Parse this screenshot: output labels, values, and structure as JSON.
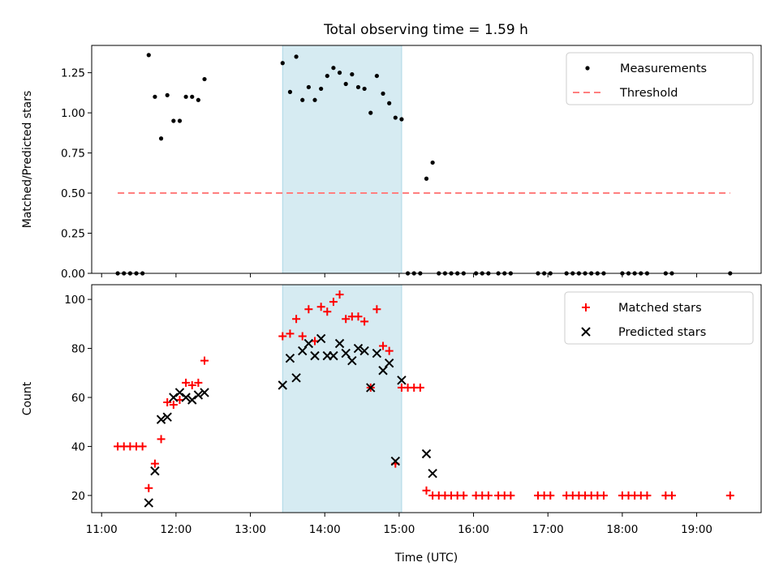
{
  "title": "Total observing time = 1.59 h",
  "colors": {
    "measurement": "#000000",
    "threshold": "#ff7f7f",
    "matched": "#ff0000",
    "predicted": "#000000",
    "shade": "#add8e6"
  },
  "chart_data": [
    {
      "type": "scatter",
      "ylabel": "Matched/Predicted stars",
      "xlabel": "",
      "xlim": [
        "10:52",
        "19:52"
      ],
      "ylim": [
        0,
        1.42
      ],
      "yticks": [
        "0.00",
        "0.25",
        "0.50",
        "0.75",
        "1.00",
        "1.25"
      ],
      "x_tick_values": [
        "11:00",
        "12:00",
        "13:00",
        "14:00",
        "15:00",
        "16:00",
        "17:00",
        "18:00",
        "19:00"
      ],
      "grid": false,
      "legend_position": "upper right",
      "shaded_region": [
        "13:26",
        "15:02"
      ],
      "series": [
        {
          "name": "Measurements",
          "marker": "dot",
          "points": [
            [
              "11:13",
              0
            ],
            [
              "11:18",
              0
            ],
            [
              "11:23",
              0
            ],
            [
              "11:28",
              0
            ],
            [
              "11:33",
              0
            ],
            [
              "11:38",
              1.36
            ],
            [
              "11:43",
              1.1
            ],
            [
              "11:48",
              0.84
            ],
            [
              "11:53",
              1.11
            ],
            [
              "11:58",
              0.95
            ],
            [
              "12:03",
              0.95
            ],
            [
              "12:08",
              1.1
            ],
            [
              "12:13",
              1.1
            ],
            [
              "12:18",
              1.08
            ],
            [
              "12:23",
              1.21
            ],
            [
              "13:26",
              1.31
            ],
            [
              "13:32",
              1.13
            ],
            [
              "13:37",
              1.35
            ],
            [
              "13:42",
              1.08
            ],
            [
              "13:47",
              1.16
            ],
            [
              "13:52",
              1.08
            ],
            [
              "13:57",
              1.15
            ],
            [
              "14:02",
              1.23
            ],
            [
              "14:07",
              1.28
            ],
            [
              "14:12",
              1.25
            ],
            [
              "14:17",
              1.18
            ],
            [
              "14:22",
              1.24
            ],
            [
              "14:27",
              1.16
            ],
            [
              "14:32",
              1.15
            ],
            [
              "14:37",
              1.0
            ],
            [
              "14:42",
              1.23
            ],
            [
              "14:47",
              1.12
            ],
            [
              "14:52",
              1.06
            ],
            [
              "14:57",
              0.97
            ],
            [
              "15:02",
              0.96
            ],
            [
              "15:07",
              0
            ],
            [
              "15:12",
              0
            ],
            [
              "15:17",
              0
            ],
            [
              "15:22",
              0.59
            ],
            [
              "15:27",
              0.69
            ],
            [
              "15:32",
              0
            ],
            [
              "15:37",
              0
            ],
            [
              "15:42",
              0
            ],
            [
              "15:47",
              0
            ],
            [
              "15:52",
              0
            ],
            [
              "16:02",
              0
            ],
            [
              "16:07",
              0
            ],
            [
              "16:12",
              0
            ],
            [
              "16:20",
              0
            ],
            [
              "16:25",
              0
            ],
            [
              "16:30",
              0
            ],
            [
              "16:52",
              0
            ],
            [
              "16:57",
              0
            ],
            [
              "17:02",
              0
            ],
            [
              "17:15",
              0
            ],
            [
              "17:20",
              0
            ],
            [
              "17:25",
              0
            ],
            [
              "17:30",
              0
            ],
            [
              "17:35",
              0
            ],
            [
              "17:40",
              0
            ],
            [
              "17:45",
              0
            ],
            [
              "18:00",
              0
            ],
            [
              "18:05",
              0
            ],
            [
              "18:10",
              0
            ],
            [
              "18:15",
              0
            ],
            [
              "18:20",
              0
            ],
            [
              "18:35",
              0
            ],
            [
              "18:40",
              0
            ],
            [
              "19:27",
              0
            ]
          ]
        },
        {
          "name": "Threshold",
          "line": "dashed",
          "points": [
            [
              "11:13",
              0.5
            ],
            [
              "19:27",
              0.5
            ]
          ]
        }
      ]
    },
    {
      "type": "scatter",
      "ylabel": "Count",
      "xlabel": "Time (UTC)",
      "xlim": [
        "10:52",
        "19:52"
      ],
      "ylim": [
        13,
        106
      ],
      "yticks": [
        "20",
        "40",
        "60",
        "80",
        "100"
      ],
      "xticks": [
        "11:00",
        "12:00",
        "13:00",
        "14:00",
        "15:00",
        "16:00",
        "17:00",
        "18:00",
        "19:00"
      ],
      "grid": false,
      "legend_position": "upper right",
      "shaded_region": [
        "13:26",
        "15:02"
      ],
      "series": [
        {
          "name": "Matched stars",
          "marker": "plus",
          "points": [
            [
              "11:13",
              40
            ],
            [
              "11:18",
              40
            ],
            [
              "11:23",
              40
            ],
            [
              "11:28",
              40
            ],
            [
              "11:33",
              40
            ],
            [
              "11:38",
              23
            ],
            [
              "11:43",
              33
            ],
            [
              "11:48",
              43
            ],
            [
              "11:53",
              58
            ],
            [
              "11:58",
              57
            ],
            [
              "12:03",
              59
            ],
            [
              "12:08",
              66
            ],
            [
              "12:13",
              65
            ],
            [
              "12:18",
              66
            ],
            [
              "12:23",
              75
            ],
            [
              "13:26",
              85
            ],
            [
              "13:32",
              86
            ],
            [
              "13:37",
              92
            ],
            [
              "13:42",
              85
            ],
            [
              "13:47",
              96
            ],
            [
              "13:52",
              83
            ],
            [
              "13:57",
              97
            ],
            [
              "14:02",
              95
            ],
            [
              "14:07",
              99
            ],
            [
              "14:12",
              102
            ],
            [
              "14:17",
              92
            ],
            [
              "14:22",
              93
            ],
            [
              "14:27",
              93
            ],
            [
              "14:32",
              91
            ],
            [
              "14:37",
              64
            ],
            [
              "14:42",
              96
            ],
            [
              "14:47",
              81
            ],
            [
              "14:52",
              79
            ],
            [
              "14:57",
              33
            ],
            [
              "15:02",
              64
            ],
            [
              "15:07",
              64
            ],
            [
              "15:12",
              64
            ],
            [
              "15:17",
              64
            ],
            [
              "15:22",
              22
            ],
            [
              "15:27",
              20
            ],
            [
              "15:32",
              20
            ],
            [
              "15:37",
              20
            ],
            [
              "15:42",
              20
            ],
            [
              "15:47",
              20
            ],
            [
              "15:52",
              20
            ],
            [
              "16:02",
              20
            ],
            [
              "16:07",
              20
            ],
            [
              "16:12",
              20
            ],
            [
              "16:20",
              20
            ],
            [
              "16:25",
              20
            ],
            [
              "16:30",
              20
            ],
            [
              "16:52",
              20
            ],
            [
              "16:57",
              20
            ],
            [
              "17:02",
              20
            ],
            [
              "17:15",
              20
            ],
            [
              "17:20",
              20
            ],
            [
              "17:25",
              20
            ],
            [
              "17:30",
              20
            ],
            [
              "17:35",
              20
            ],
            [
              "17:40",
              20
            ],
            [
              "17:45",
              20
            ],
            [
              "18:00",
              20
            ],
            [
              "18:05",
              20
            ],
            [
              "18:10",
              20
            ],
            [
              "18:15",
              20
            ],
            [
              "18:20",
              20
            ],
            [
              "18:35",
              20
            ],
            [
              "18:40",
              20
            ],
            [
              "19:27",
              20
            ]
          ]
        },
        {
          "name": "Predicted stars",
          "marker": "x",
          "points": [
            [
              "11:38",
              17
            ],
            [
              "11:43",
              30
            ],
            [
              "11:48",
              51
            ],
            [
              "11:53",
              52
            ],
            [
              "11:58",
              60
            ],
            [
              "12:03",
              62
            ],
            [
              "12:08",
              60
            ],
            [
              "12:13",
              59
            ],
            [
              "12:18",
              61
            ],
            [
              "12:23",
              62
            ],
            [
              "13:26",
              65
            ],
            [
              "13:32",
              76
            ],
            [
              "13:37",
              68
            ],
            [
              "13:42",
              79
            ],
            [
              "13:47",
              82
            ],
            [
              "13:52",
              77
            ],
            [
              "13:57",
              84
            ],
            [
              "14:02",
              77
            ],
            [
              "14:07",
              77
            ],
            [
              "14:12",
              82
            ],
            [
              "14:17",
              78
            ],
            [
              "14:22",
              75
            ],
            [
              "14:27",
              80
            ],
            [
              "14:32",
              79
            ],
            [
              "14:37",
              64
            ],
            [
              "14:42",
              78
            ],
            [
              "14:47",
              71
            ],
            [
              "14:52",
              74
            ],
            [
              "14:57",
              34
            ],
            [
              "15:02",
              67
            ],
            [
              "15:22",
              37
            ],
            [
              "15:27",
              29
            ]
          ]
        }
      ]
    }
  ]
}
